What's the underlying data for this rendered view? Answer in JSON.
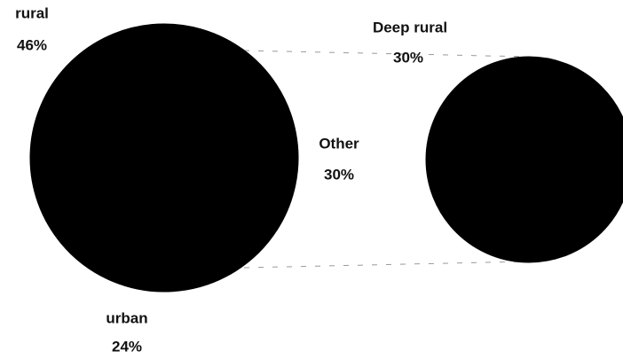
{
  "chart_data": {
    "type": "pie",
    "categories": [
      "rural",
      "urban",
      "Other"
    ],
    "values": [
      46,
      24,
      30
    ],
    "value_labels": [
      "46%",
      "24%",
      "30%"
    ],
    "color": "#000000",
    "secondary": {
      "categories": [
        "Deep rural"
      ],
      "values": [
        30
      ],
      "value_labels": [
        "30%"
      ],
      "color": "#000000"
    }
  }
}
